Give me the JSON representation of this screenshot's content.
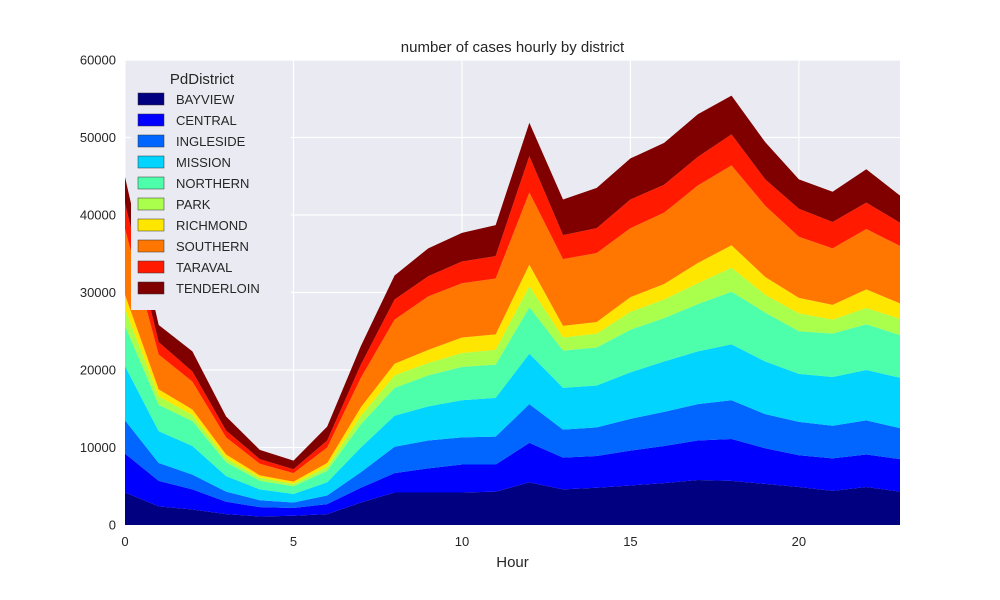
{
  "chart_data": {
    "type": "area",
    "stacked": true,
    "title": "number of cases hourly by district",
    "xlabel": "Hour",
    "ylabel": "",
    "xlim": [
      0,
      23
    ],
    "ylim": [
      0,
      60000
    ],
    "xticks": [
      0,
      5,
      10,
      15,
      20
    ],
    "yticks": [
      0,
      10000,
      20000,
      30000,
      40000,
      50000,
      60000
    ],
    "grid": true,
    "legend_title": "PdDistrict",
    "legend_position": "upper-left",
    "x": [
      0,
      1,
      2,
      3,
      4,
      5,
      6,
      7,
      8,
      9,
      10,
      11,
      12,
      13,
      14,
      15,
      16,
      17,
      18,
      19,
      20,
      21,
      22,
      23
    ],
    "series": [
      {
        "name": "BAYVIEW",
        "color": "#000080",
        "values": [
          4200,
          2400,
          2000,
          1400,
          1100,
          1200,
          1400,
          2900,
          4200,
          4200,
          4200,
          4300,
          5500,
          4600,
          4800,
          5100,
          5400,
          5800,
          5700,
          5300,
          4900,
          4400,
          4900,
          4300
        ]
      },
      {
        "name": "CENTRAL",
        "color": "#0000ff",
        "values": [
          5000,
          3300,
          2600,
          1600,
          1200,
          1000,
          1300,
          1900,
          2500,
          3100,
          3600,
          3500,
          5100,
          4100,
          4100,
          4500,
          4800,
          5100,
          5400,
          4600,
          4100,
          4200,
          4200,
          4200
        ]
      },
      {
        "name": "INGLESIDE",
        "color": "#0066ff",
        "values": [
          4300,
          2300,
          1900,
          1300,
          900,
          700,
          1100,
          2000,
          3400,
          3600,
          3500,
          3600,
          5000,
          3600,
          3700,
          4100,
          4400,
          4700,
          5000,
          4400,
          4300,
          4200,
          4400,
          4000
        ]
      },
      {
        "name": "MISSION",
        "color": "#00d4ff",
        "values": [
          7000,
          4100,
          3700,
          2000,
          1400,
          1100,
          1700,
          3200,
          4000,
          4400,
          4800,
          5000,
          6500,
          5400,
          5400,
          6000,
          6500,
          6800,
          7200,
          6800,
          6200,
          6300,
          6500,
          6500
        ]
      },
      {
        "name": "NORTHERN",
        "color": "#4dffaa",
        "values": [
          5200,
          3400,
          3200,
          1800,
          1100,
          1000,
          1500,
          3000,
          3600,
          4000,
          4300,
          4300,
          6000,
          4800,
          4900,
          5500,
          5600,
          6100,
          6800,
          6300,
          5500,
          5600,
          5900,
          5500
        ]
      },
      {
        "name": "PARK",
        "color": "#aaff4d",
        "values": [
          2200,
          1100,
          800,
          500,
          400,
          300,
          500,
          1100,
          1600,
          1600,
          1800,
          1900,
          2700,
          1700,
          1800,
          2300,
          2400,
          2700,
          3100,
          2300,
          2300,
          1800,
          2100,
          2100
        ]
      },
      {
        "name": "RICHMOND",
        "color": "#ffe600",
        "values": [
          1800,
          900,
          700,
          500,
          300,
          300,
          500,
          1100,
          1500,
          1700,
          2000,
          2000,
          2800,
          1500,
          1500,
          1900,
          2000,
          2600,
          2900,
          2300,
          2000,
          1900,
          2400,
          2000
        ]
      },
      {
        "name": "SOUTHERN",
        "color": "#ff7700",
        "values": [
          8500,
          4500,
          3600,
          2200,
          1500,
          1100,
          2000,
          3800,
          5700,
          6900,
          7000,
          7200,
          9300,
          8600,
          8900,
          8900,
          9200,
          10000,
          10300,
          9200,
          7900,
          7300,
          7800,
          7400
        ]
      },
      {
        "name": "TARAVAL",
        "color": "#ff1a00",
        "values": [
          3300,
          1600,
          1300,
          900,
          600,
          500,
          900,
          1700,
          2600,
          2600,
          2800,
          2900,
          4700,
          3100,
          3200,
          3700,
          3600,
          3700,
          4000,
          3400,
          3600,
          3400,
          3400,
          3000
        ]
      },
      {
        "name": "TENDERLOIN",
        "color": "#800000",
        "values": [
          3400,
          2200,
          2600,
          1800,
          1200,
          1100,
          1800,
          2400,
          3100,
          3600,
          3700,
          4000,
          4300,
          4600,
          5200,
          5300,
          5400,
          5500,
          5000,
          4800,
          3800,
          3900,
          4300,
          3500
        ]
      }
    ]
  }
}
